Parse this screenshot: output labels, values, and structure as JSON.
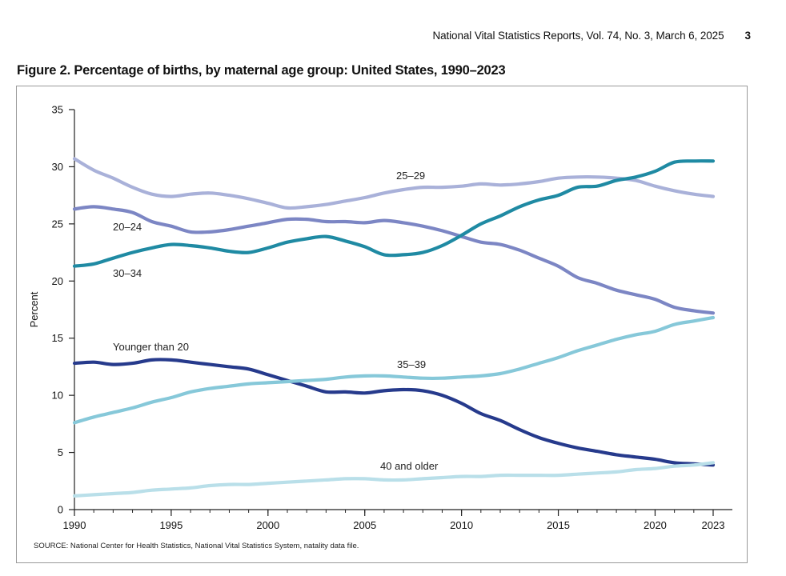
{
  "header": {
    "running_title": "National Vital Statistics Reports, Vol. 74, No. 3, March 6, 2025",
    "page_number": "3"
  },
  "figure": {
    "title": "Figure 2. Percentage of births, by maternal age group: United States, 1990–2023",
    "source": "SOURCE: National Center for Health Statistics, National Vital Statistics System, natality data file."
  },
  "chart_data": {
    "type": "line",
    "title": "Figure 2. Percentage of births, by maternal age group: United States, 1990–2023",
    "xlabel": "",
    "ylabel": "Percent",
    "xlim": [
      1990,
      2023
    ],
    "ylim": [
      0,
      35
    ],
    "x_ticks": [
      1990,
      1995,
      2000,
      2005,
      2010,
      2015,
      2020,
      2023
    ],
    "y_ticks": [
      0,
      5,
      10,
      15,
      20,
      25,
      30,
      35
    ],
    "grid": false,
    "x": [
      1990,
      1991,
      1992,
      1993,
      1994,
      1995,
      1996,
      1997,
      1998,
      1999,
      2000,
      2001,
      2002,
      2003,
      2004,
      2005,
      2006,
      2007,
      2008,
      2009,
      2010,
      2011,
      2012,
      2013,
      2014,
      2015,
      2016,
      2017,
      2018,
      2019,
      2020,
      2021,
      2022,
      2023
    ],
    "series": [
      {
        "name": "25–29",
        "label": "25–29",
        "color": "#a9b1d9",
        "values": [
          30.7,
          29.7,
          29.0,
          28.2,
          27.6,
          27.4,
          27.6,
          27.7,
          27.5,
          27.2,
          26.8,
          26.4,
          26.5,
          26.7,
          27.0,
          27.3,
          27.7,
          28.0,
          28.2,
          28.2,
          28.3,
          28.5,
          28.4,
          28.5,
          28.7,
          29.0,
          29.1,
          29.1,
          29.0,
          28.8,
          28.3,
          27.9,
          27.6,
          27.4
        ]
      },
      {
        "name": "20–24",
        "label": "20–24",
        "color": "#7c86c4",
        "values": [
          26.3,
          26.5,
          26.3,
          26.0,
          25.2,
          24.8,
          24.3,
          24.3,
          24.5,
          24.8,
          25.1,
          25.4,
          25.4,
          25.2,
          25.2,
          25.1,
          25.3,
          25.1,
          24.8,
          24.4,
          23.9,
          23.4,
          23.2,
          22.7,
          22.0,
          21.3,
          20.3,
          19.8,
          19.2,
          18.8,
          18.4,
          17.7,
          17.4,
          17.2
        ]
      },
      {
        "name": "30–34",
        "label": "30–34",
        "color": "#1f8aa3",
        "values": [
          21.3,
          21.5,
          22.0,
          22.5,
          22.9,
          23.2,
          23.1,
          22.9,
          22.6,
          22.5,
          22.9,
          23.4,
          23.7,
          23.9,
          23.5,
          23.0,
          22.3,
          22.3,
          22.5,
          23.1,
          24.0,
          25.0,
          25.7,
          26.5,
          27.1,
          27.5,
          28.2,
          28.3,
          28.8,
          29.1,
          29.6,
          30.4,
          30.5,
          30.5
        ]
      },
      {
        "name": "Younger than 20",
        "label": "Younger than 20",
        "color": "#263a8c",
        "values": [
          12.8,
          12.9,
          12.7,
          12.8,
          13.1,
          13.1,
          12.9,
          12.7,
          12.5,
          12.3,
          11.8,
          11.3,
          10.8,
          10.3,
          10.3,
          10.2,
          10.4,
          10.5,
          10.4,
          10.0,
          9.3,
          8.4,
          7.8,
          7.0,
          6.3,
          5.8,
          5.4,
          5.1,
          4.8,
          4.6,
          4.4,
          4.1,
          4.0,
          3.9
        ]
      },
      {
        "name": "35–39",
        "label": "35–39",
        "color": "#86c8d9",
        "values": [
          7.6,
          8.1,
          8.5,
          8.9,
          9.4,
          9.8,
          10.3,
          10.6,
          10.8,
          11.0,
          11.1,
          11.2,
          11.3,
          11.4,
          11.6,
          11.7,
          11.7,
          11.6,
          11.5,
          11.5,
          11.6,
          11.7,
          11.9,
          12.3,
          12.8,
          13.3,
          13.9,
          14.4,
          14.9,
          15.3,
          15.6,
          16.2,
          16.5,
          16.8
        ]
      },
      {
        "name": "40 and older",
        "label": "40 and older",
        "color": "#b9dfe9",
        "values": [
          1.2,
          1.3,
          1.4,
          1.5,
          1.7,
          1.8,
          1.9,
          2.1,
          2.2,
          2.2,
          2.3,
          2.4,
          2.5,
          2.6,
          2.7,
          2.7,
          2.6,
          2.6,
          2.7,
          2.8,
          2.9,
          2.9,
          3.0,
          3.0,
          3.0,
          3.0,
          3.1,
          3.2,
          3.3,
          3.5,
          3.6,
          3.8,
          3.9,
          4.1
        ]
      }
    ]
  }
}
